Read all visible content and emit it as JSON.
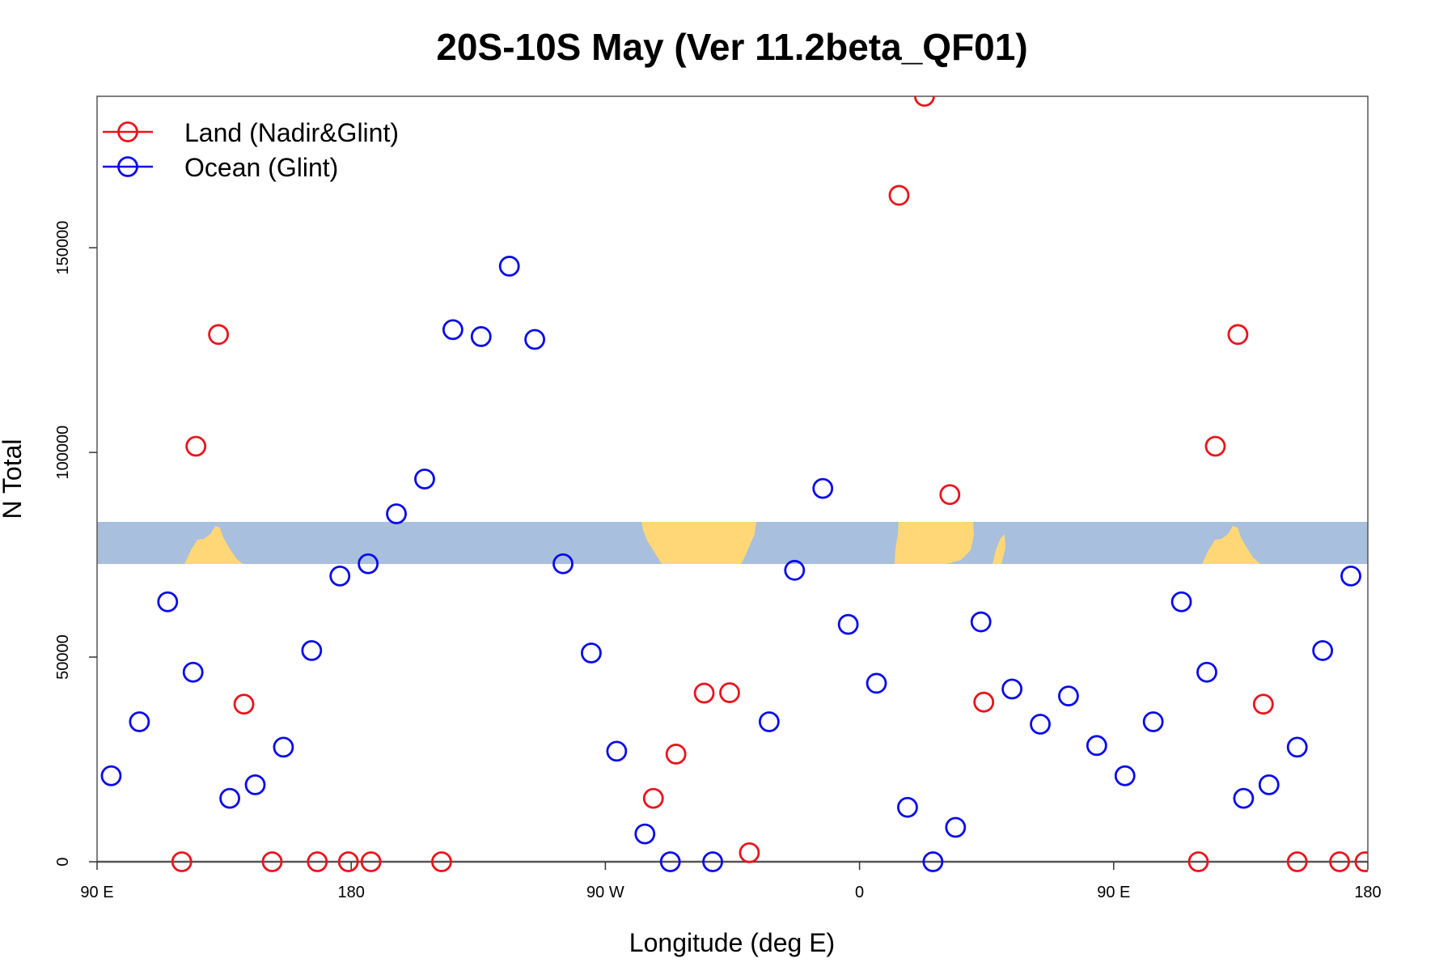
{
  "chart_data": {
    "type": "scatter",
    "title": "20S-10S May (Ver 11.2beta_QF01)",
    "xlabel": "Longitude (deg E)",
    "ylabel": "N Total",
    "xlim": [
      90,
      540
    ],
    "ylim": [
      0,
      187000
    ],
    "x_ticks": [
      {
        "value": 90,
        "label": "90 E"
      },
      {
        "value": 180,
        "label": "180"
      },
      {
        "value": 270,
        "label": "90 W"
      },
      {
        "value": 360,
        "label": "0"
      },
      {
        "value": 450,
        "label": "90 E"
      },
      {
        "value": 540,
        "label": "180"
      }
    ],
    "y_ticks": [
      {
        "value": 0,
        "label": "0"
      },
      {
        "value": 50000,
        "label": "50000"
      },
      {
        "value": 100000,
        "label": "100000"
      },
      {
        "value": 150000,
        "label": "150000"
      }
    ],
    "map_band": {
      "lon_range": [
        90,
        540
      ],
      "ocean_color": "#a8bfdd",
      "land_color": "#ffd776"
    },
    "legend_position": "top-left",
    "series": [
      {
        "name": "Land (Nadir&Glint)",
        "color": "#e8141c",
        "points": [
          [
            120,
            0
          ],
          [
            125,
            101500
          ],
          [
            133,
            128800
          ],
          [
            142,
            38500
          ],
          [
            152,
            0
          ],
          [
            168,
            0
          ],
          [
            179,
            0
          ],
          [
            187,
            0
          ],
          [
            212,
            0
          ],
          [
            287,
            15500
          ],
          [
            295,
            26300
          ],
          [
            305,
            41200
          ],
          [
            314,
            41300
          ],
          [
            321,
            2200
          ],
          [
            374,
            162800
          ],
          [
            383,
            187000
          ],
          [
            392,
            89700
          ],
          [
            404,
            39000
          ],
          [
            480,
            0
          ],
          [
            486,
            101500
          ],
          [
            494,
            128800
          ],
          [
            503,
            38500
          ],
          [
            515,
            0
          ],
          [
            530,
            0
          ],
          [
            539,
            0
          ]
        ]
      },
      {
        "name": "Ocean (Glint)",
        "color": "#0a0ae8",
        "points": [
          [
            95,
            21000
          ],
          [
            105,
            34200
          ],
          [
            115,
            63500
          ],
          [
            124,
            46300
          ],
          [
            137,
            15500
          ],
          [
            146,
            18800
          ],
          [
            156,
            28000
          ],
          [
            166,
            51600
          ],
          [
            176,
            69800
          ],
          [
            186,
            72800
          ],
          [
            196,
            85000
          ],
          [
            206,
            93500
          ],
          [
            216,
            130000
          ],
          [
            226,
            128300
          ],
          [
            236,
            145500
          ],
          [
            245,
            127600
          ],
          [
            255,
            72800
          ],
          [
            265,
            51000
          ],
          [
            274,
            27000
          ],
          [
            284,
            6800
          ],
          [
            293,
            0
          ],
          [
            308,
            0
          ],
          [
            328,
            34200
          ],
          [
            337,
            71200
          ],
          [
            347,
            91200
          ],
          [
            356,
            58000
          ],
          [
            366,
            43600
          ],
          [
            377,
            13300
          ],
          [
            386,
            0
          ],
          [
            394,
            8400
          ],
          [
            403,
            58600
          ],
          [
            414,
            42200
          ],
          [
            424,
            33600
          ],
          [
            434,
            40500
          ],
          [
            444,
            28400
          ],
          [
            454,
            21000
          ],
          [
            464,
            34200
          ],
          [
            474,
            63500
          ],
          [
            483,
            46300
          ],
          [
            496,
            15500
          ],
          [
            505,
            18800
          ],
          [
            515,
            28000
          ],
          [
            524,
            51600
          ],
          [
            534,
            69800
          ]
        ]
      }
    ]
  }
}
